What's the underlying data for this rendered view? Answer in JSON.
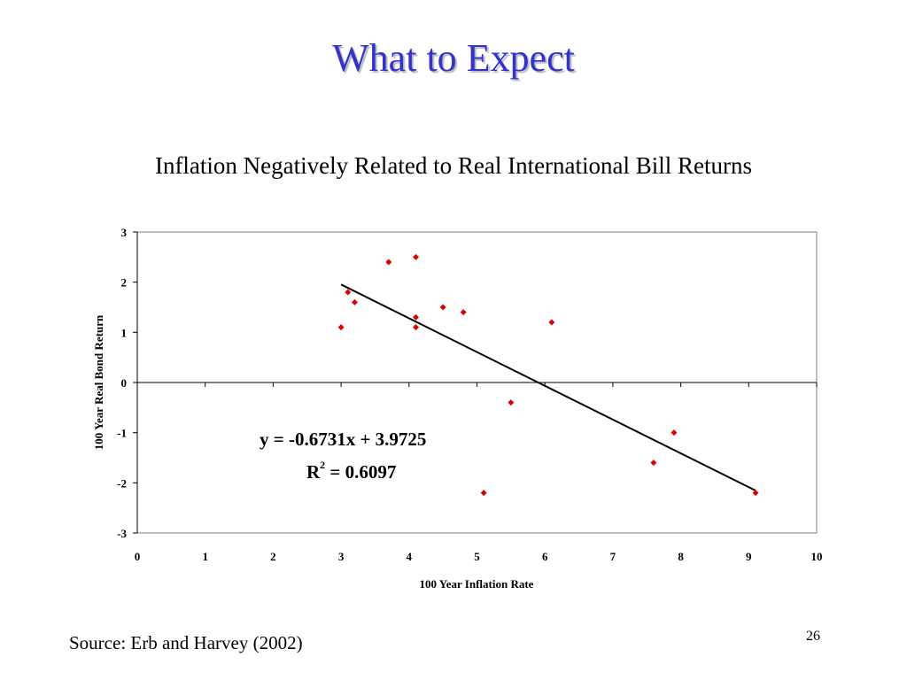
{
  "slide": {
    "title": "What to Expect",
    "subtitle": "Inflation Negatively Related to Real International Bill Returns",
    "source": "Source: Erb and Harvey (2002)",
    "page_number": "26"
  },
  "colors": {
    "title": "#3333cc",
    "points": "#dd0000",
    "trendline": "#000000"
  },
  "chart_data": {
    "type": "scatter",
    "title": "",
    "xlabel": "100 Year Inflation Rate",
    "ylabel": "100 Year Real Bond Return",
    "xlim": [
      0,
      10
    ],
    "ylim": [
      -3,
      3
    ],
    "x_ticks": [
      0,
      1,
      2,
      3,
      4,
      5,
      6,
      7,
      8,
      9,
      10
    ],
    "y_ticks": [
      3,
      2,
      1,
      0,
      -1,
      -2,
      -3
    ],
    "grid": false,
    "legend": "none",
    "series": [
      {
        "points": [
          {
            "x": 3.0,
            "y": 1.1
          },
          {
            "x": 3.1,
            "y": 1.8
          },
          {
            "x": 3.2,
            "y": 1.6
          },
          {
            "x": 3.7,
            "y": 2.4
          },
          {
            "x": 4.1,
            "y": 2.5
          },
          {
            "x": 4.1,
            "y": 1.3
          },
          {
            "x": 4.1,
            "y": 1.1
          },
          {
            "x": 4.5,
            "y": 1.5
          },
          {
            "x": 4.8,
            "y": 1.4
          },
          {
            "x": 5.1,
            "y": -2.2
          },
          {
            "x": 5.5,
            "y": -0.4
          },
          {
            "x": 6.1,
            "y": 1.2
          },
          {
            "x": 7.6,
            "y": -1.6
          },
          {
            "x": 7.9,
            "y": -1.0
          },
          {
            "x": 9.1,
            "y": -2.2
          }
        ]
      }
    ],
    "trendline": {
      "slope": -0.6731,
      "intercept": 3.9725,
      "x_range": [
        3.0,
        9.1
      ],
      "equation": "y = -0.6731x + 3.9725",
      "r2_label": "R",
      "r2_sup": "2",
      "r2_value": " = 0.6097"
    }
  }
}
